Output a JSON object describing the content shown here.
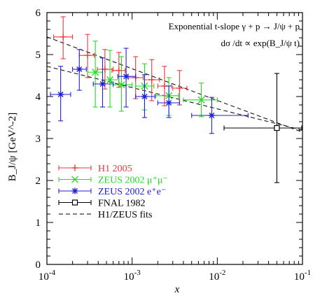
{
  "chart_data": {
    "type": "scatter",
    "x_scale": "log",
    "xlim": [
      0.0001,
      0.1
    ],
    "ylim": [
      0,
      6
    ],
    "x_ticks": [
      {
        "value": 0.0001,
        "base": "10",
        "exp": "-4"
      },
      {
        "value": 0.001,
        "base": "10",
        "exp": "-3"
      },
      {
        "value": 0.01,
        "base": "10",
        "exp": "-2"
      },
      {
        "value": 0.1,
        "base": "10",
        "exp": "-1"
      }
    ],
    "y_ticks": [
      "0",
      "1",
      "2",
      "3",
      "4",
      "5",
      "6"
    ],
    "xlabel": "x",
    "ylabel": "B_J/ψ [GeV^-2]",
    "annotation_line1": "Exponential  t-slope  γ + p → J/ψ + p",
    "annotation_line2": "dσ /dt  ∝  exp(B_J/ψ t)",
    "legend_position": "lower-left",
    "series": [
      {
        "name": "H1 2005",
        "color": "#e8383d",
        "marker": "plus",
        "points": [
          {
            "x": 0.000155,
            "y": 5.42,
            "ylo": 4.9,
            "yhi": 5.9,
            "xlo": 0.00012,
            "xhi": 0.0002
          },
          {
            "x": 0.0003,
            "y": 4.98,
            "ylo": 4.45,
            "yhi": 5.48,
            "xlo": 0.00024,
            "xhi": 0.00036
          },
          {
            "x": 0.00048,
            "y": 4.65,
            "ylo": 4.18,
            "yhi": 5.12,
            "xlo": 0.00039,
            "xhi": 0.0006
          },
          {
            "x": 0.0007,
            "y": 4.62,
            "ylo": 4.22,
            "yhi": 5.05,
            "xlo": 0.00058,
            "xhi": 0.00083
          },
          {
            "x": 0.0011,
            "y": 4.45,
            "ylo": 3.95,
            "yhi": 4.95,
            "xlo": 0.0009,
            "xhi": 0.00135
          },
          {
            "x": 0.0017,
            "y": 4.4,
            "ylo": 3.9,
            "yhi": 4.88,
            "xlo": 0.0014,
            "xhi": 0.0021
          },
          {
            "x": 0.0024,
            "y": 4.25,
            "ylo": 3.78,
            "yhi": 4.72,
            "xlo": 0.002,
            "xhi": 0.0029
          },
          {
            "x": 0.0036,
            "y": 4.2,
            "ylo": 3.8,
            "yhi": 4.62,
            "xlo": 0.003,
            "xhi": 0.0044
          }
        ]
      },
      {
        "name": "ZEUS 2002 μ⁺μ⁻",
        "color": "#22dd22",
        "marker": "x",
        "points": [
          {
            "x": 0.00037,
            "y": 4.58,
            "ylo": 3.75,
            "yhi": 5.32,
            "xlo": 0.0003,
            "xhi": 0.00045
          },
          {
            "x": 0.00055,
            "y": 4.4,
            "ylo": 3.75,
            "yhi": 5.1,
            "xlo": 0.00045,
            "xhi": 0.0007
          },
          {
            "x": 0.00075,
            "y": 4.28,
            "ylo": 3.65,
            "yhi": 4.95,
            "xlo": 0.0006,
            "xhi": 0.001
          },
          {
            "x": 0.0014,
            "y": 4.25,
            "ylo": 3.68,
            "yhi": 4.78,
            "xlo": 0.0011,
            "xhi": 0.0018
          },
          {
            "x": 0.0027,
            "y": 4.02,
            "ylo": 3.55,
            "yhi": 4.45,
            "xlo": 0.0019,
            "xhi": 0.0035
          },
          {
            "x": 0.0065,
            "y": 3.92,
            "ylo": 3.52,
            "yhi": 4.32,
            "xlo": 0.004,
            "xhi": 0.01
          }
        ]
      },
      {
        "name": "ZEUS 2002 e⁺e⁻",
        "color": "#2020d8",
        "marker": "star",
        "points": [
          {
            "x": 0.000145,
            "y": 4.05,
            "ylo": 3.42,
            "yhi": 4.72,
            "xlo": 0.00011,
            "xhi": 0.00019
          },
          {
            "x": 0.00024,
            "y": 4.65,
            "ylo": 4.15,
            "yhi": 5.12,
            "xlo": 0.0002,
            "xhi": 0.00029
          },
          {
            "x": 0.00045,
            "y": 4.3,
            "ylo": 3.75,
            "yhi": 4.92,
            "xlo": 0.00035,
            "xhi": 0.0006
          },
          {
            "x": 0.00085,
            "y": 4.48,
            "ylo": 3.75,
            "yhi": 5.15,
            "xlo": 0.00068,
            "xhi": 0.0011
          },
          {
            "x": 0.0014,
            "y": 4.0,
            "ylo": 3.5,
            "yhi": 4.52,
            "xlo": 0.0011,
            "xhi": 0.00185
          },
          {
            "x": 0.0027,
            "y": 3.85,
            "ylo": 3.5,
            "yhi": 4.25,
            "xlo": 0.002,
            "xhi": 0.0036
          },
          {
            "x": 0.0086,
            "y": 3.55,
            "ylo": 3.12,
            "yhi": 3.98,
            "xlo": 0.005,
            "xhi": 0.023
          }
        ]
      },
      {
        "name": "FNAL 1982",
        "color": "#000000",
        "marker": "square",
        "points": [
          {
            "x": 0.05,
            "y": 3.25,
            "ylo": 1.95,
            "yhi": 4.55,
            "xlo": 0.012,
            "xhi": 0.098
          }
        ]
      }
    ],
    "fits": [
      {
        "name": "H1/ZEUS fits",
        "x0": 0.0001,
        "y0": 5.42,
        "x1": 0.1,
        "y1": 3.15
      },
      {
        "name": "H1/ZEUS fits",
        "x0": 0.0001,
        "y0": 4.72,
        "x1": 0.1,
        "y1": 3.2
      }
    ],
    "legend_entries": [
      {
        "label": "H1 2005",
        "color": "#e8383d",
        "marker": "plus"
      },
      {
        "label": "ZEUS 2002 μ⁺μ⁻",
        "color": "#22dd22",
        "marker": "x"
      },
      {
        "label": "ZEUS 2002 e⁺e⁻",
        "color": "#2020d8",
        "marker": "star"
      },
      {
        "label": "FNAL 1982",
        "color": "#000000",
        "marker": "square"
      },
      {
        "label": "H1/ZEUS fits",
        "color": "#000000",
        "marker": "dash"
      }
    ]
  }
}
